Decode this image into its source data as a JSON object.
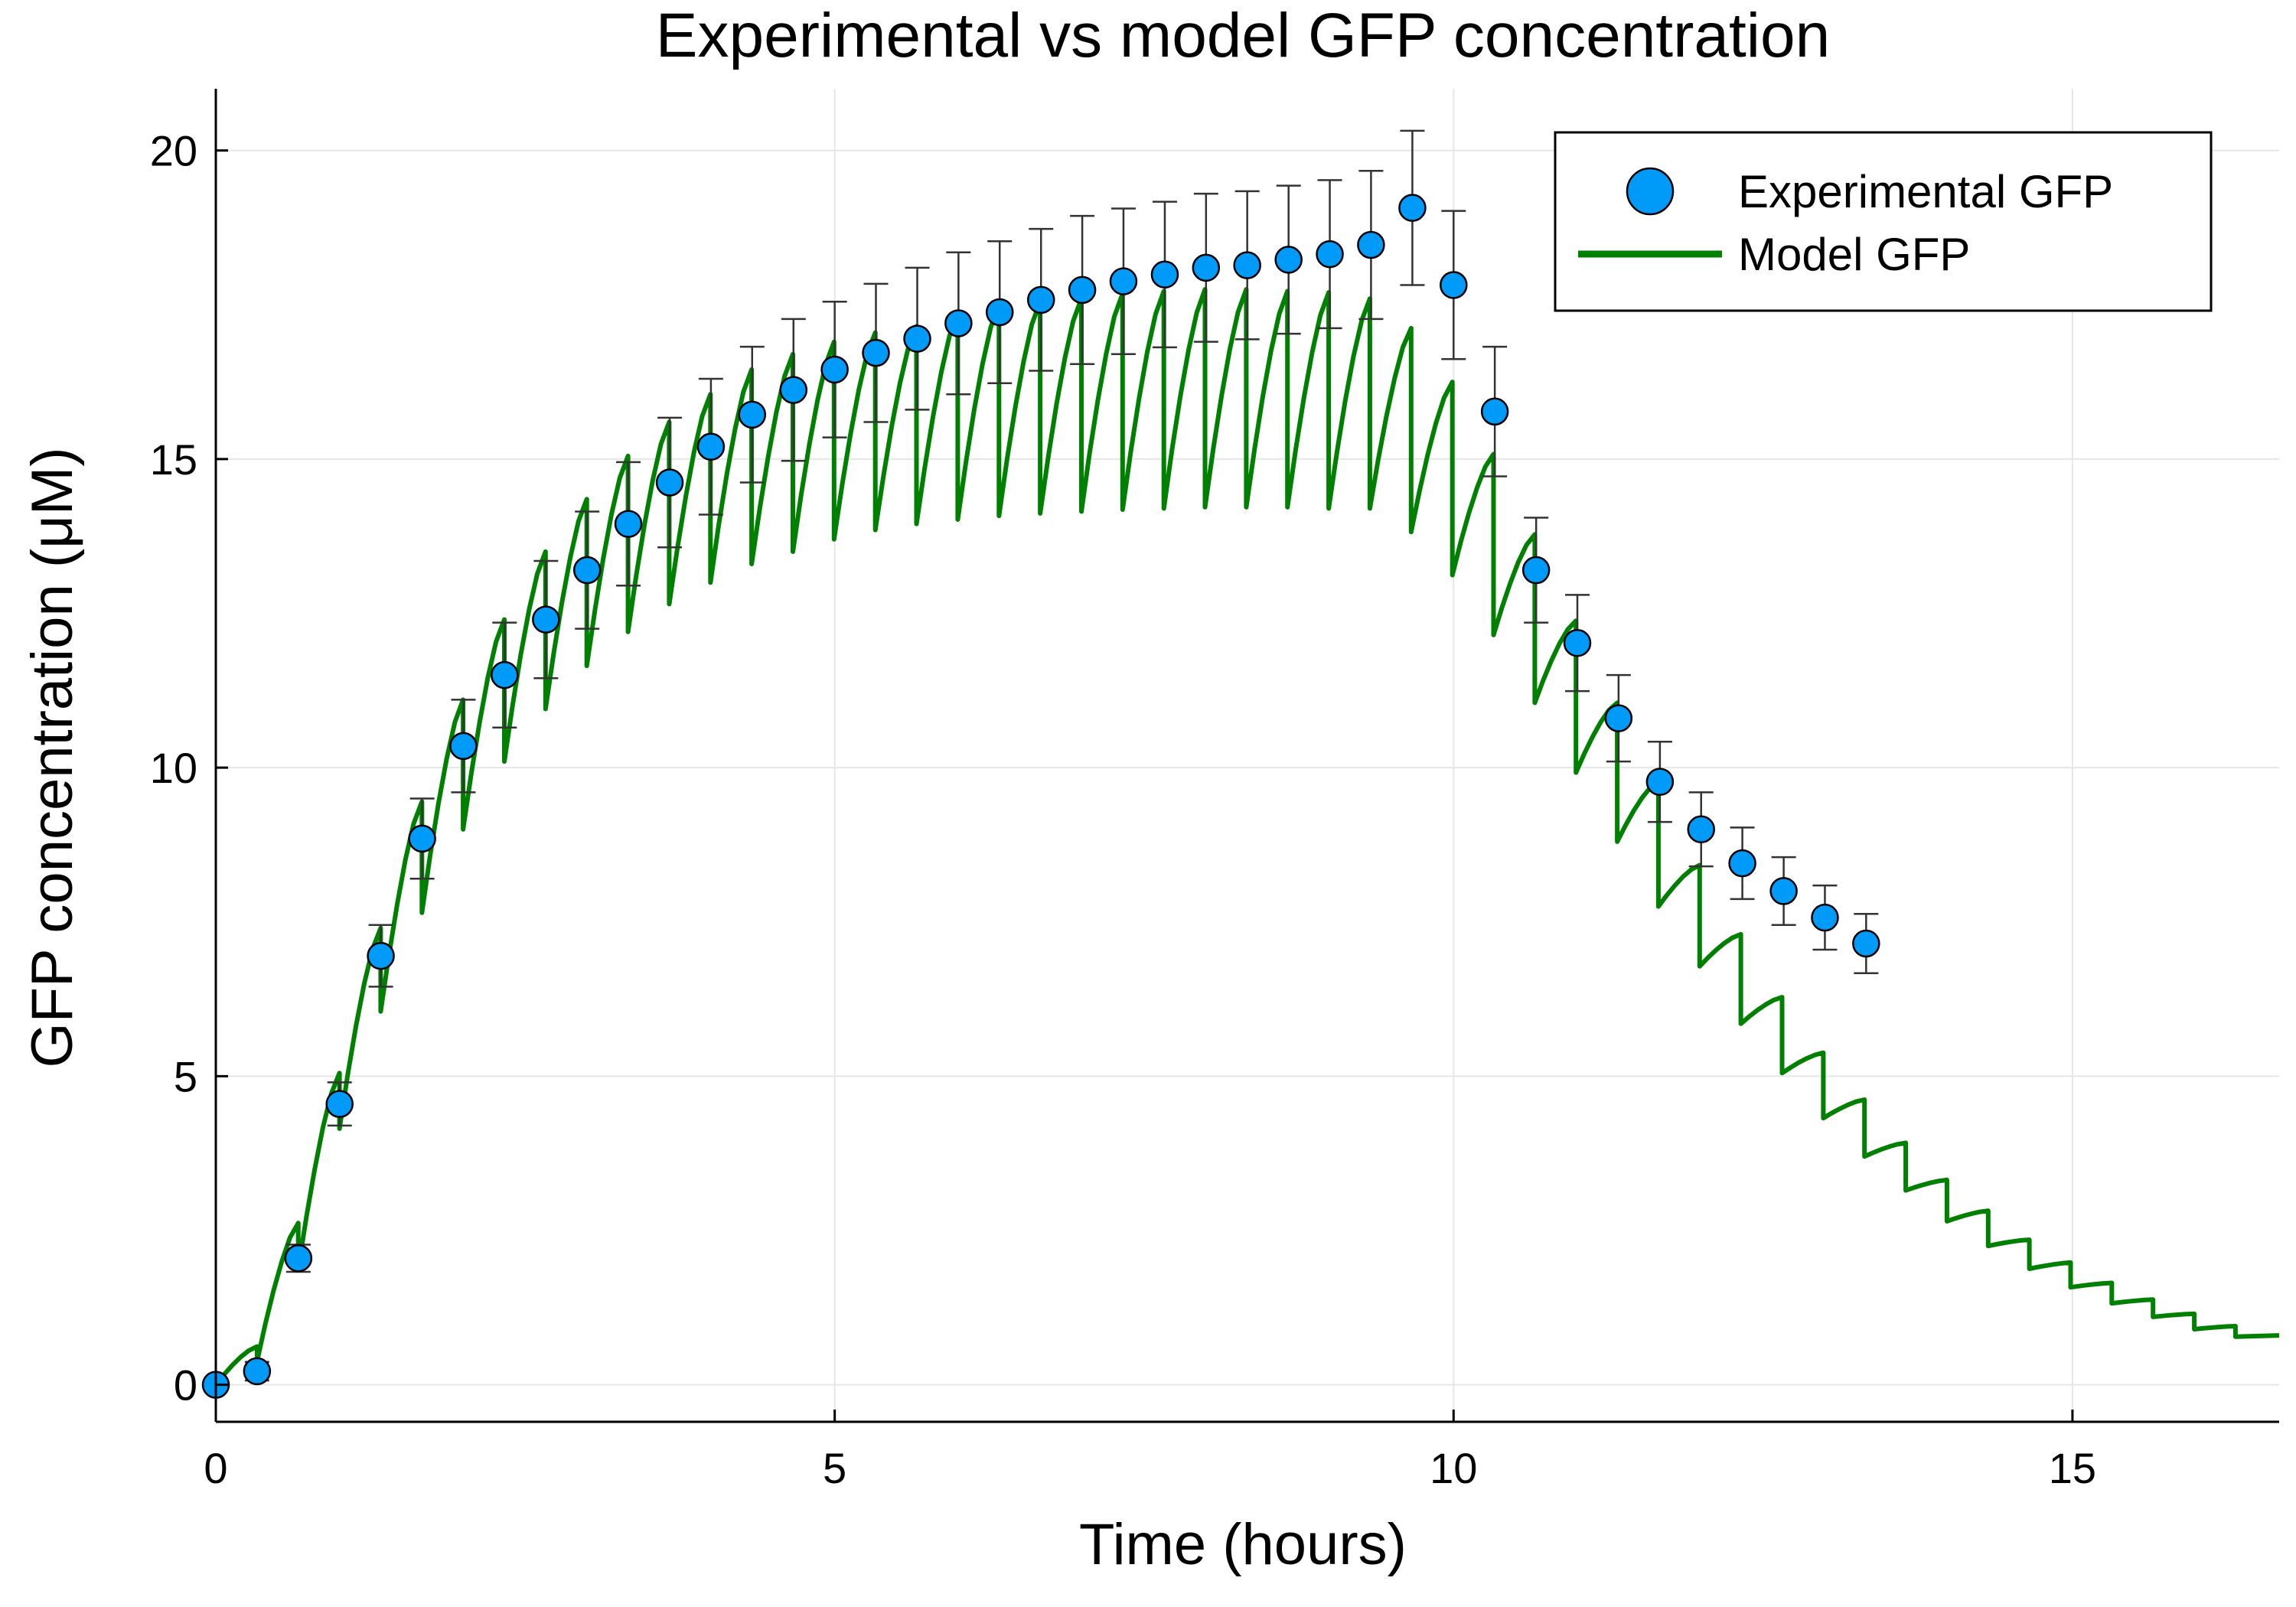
{
  "chart_data": {
    "type": "scatter",
    "title": "Experimental vs model GFP concentration",
    "xlabel": "Time (hours)",
    "ylabel": "GFP concentration (μM)",
    "xlim": [
      0,
      16.67
    ],
    "ylim": [
      -0.6,
      21
    ],
    "x_ticks": [
      0,
      5,
      10,
      15
    ],
    "y_ticks": [
      0,
      5,
      10,
      15,
      20
    ],
    "grid": true,
    "legend": "top-right",
    "colors": {
      "experimental": "#009af9",
      "model": "#008000"
    },
    "series": [
      {
        "name": "Experimental GFP",
        "kind": "scatter-errorbar",
        "x": [
          0,
          0.333,
          0.667,
          1,
          1.333,
          1.667,
          2,
          2.333,
          2.667,
          3,
          3.333,
          3.667,
          4,
          4.333,
          4.667,
          5,
          5.333,
          5.667,
          6,
          6.333,
          6.667,
          7,
          7.333,
          7.667,
          8,
          8.333,
          8.667,
          9,
          9.333,
          9.667,
          10,
          10.333,
          10.667,
          11,
          11.333,
          11.667,
          12,
          12.333,
          12.667,
          13,
          13.333
        ],
        "y": [
          0,
          0.22,
          2.05,
          4.55,
          6.95,
          8.85,
          10.35,
          11.5,
          12.4,
          13.2,
          13.95,
          14.62,
          15.2,
          15.72,
          16.12,
          16.45,
          16.72,
          16.95,
          17.2,
          17.38,
          17.58,
          17.74,
          17.88,
          17.99,
          18.1,
          18.14,
          18.23,
          18.32,
          18.47,
          19.07,
          17.82,
          15.77,
          13.2,
          12.02,
          10.8,
          9.77,
          9.0,
          8.45,
          8.0,
          7.57,
          7.15
        ],
        "err": [
          0.02,
          0.15,
          0.22,
          0.35,
          0.5,
          0.65,
          0.75,
          0.85,
          0.95,
          0.95,
          1.0,
          1.05,
          1.1,
          1.1,
          1.15,
          1.1,
          1.12,
          1.15,
          1.15,
          1.15,
          1.15,
          1.2,
          1.18,
          1.18,
          1.2,
          1.2,
          1.2,
          1.2,
          1.2,
          1.25,
          1.2,
          1.05,
          0.85,
          0.78,
          0.7,
          0.65,
          0.6,
          0.58,
          0.55,
          0.52,
          0.48
        ]
      },
      {
        "name": "Model GFP",
        "kind": "line",
        "peaks": [
          0.62,
          2.62,
          5.05,
          7.4,
          9.45,
          11.1,
          12.4,
          13.5,
          14.35,
          15.05,
          15.6,
          16.05,
          16.45,
          16.7,
          16.9,
          17.05,
          17.15,
          17.35,
          17.5,
          17.55,
          17.6,
          17.68,
          17.72,
          17.75,
          17.75,
          17.72,
          17.7,
          17.6,
          17.12,
          16.25,
          15.08,
          13.78,
          12.38,
          11.05,
          9.78,
          8.42,
          7.3,
          6.28,
          5.38,
          4.62,
          3.92,
          3.32,
          2.82,
          2.35,
          1.98,
          1.65,
          1.38,
          1.15,
          0.95
        ],
        "troughs": [
          0.38,
          1.88,
          4.15,
          6.05,
          7.65,
          9.0,
          10.1,
          10.95,
          11.65,
          12.2,
          12.65,
          13.0,
          13.3,
          13.5,
          13.7,
          13.85,
          13.95,
          14.02,
          14.08,
          14.12,
          14.15,
          14.18,
          14.2,
          14.22,
          14.22,
          14.22,
          14.2,
          14.2,
          13.82,
          13.12,
          12.15,
          11.05,
          9.92,
          8.8,
          7.75,
          6.78,
          5.85,
          5.05,
          4.32,
          3.7,
          3.15,
          2.65,
          2.25,
          1.88,
          1.58,
          1.32,
          1.1,
          0.9,
          0.78
        ],
        "dose_interval_hours": 0.333,
        "end": [
          16.67,
          0.8
        ]
      }
    ]
  }
}
